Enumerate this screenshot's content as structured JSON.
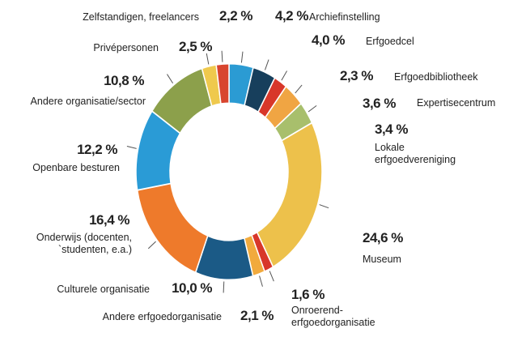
{
  "chart_data": {
    "type": "donut",
    "categories": [
      "Archiefinstelling",
      "Erfgoedcel",
      "Erfgoedbibliotheek",
      "Expertisecentrum",
      "Lokale\nerfgoedvereniging",
      "Museum",
      "Onroerend-\nerfgoedorganisatie",
      "Andere erfgoedorganisatie",
      "Culturele organisatie",
      "Onderwijs (docenten,\n`studenten, e.a.)",
      "Openbare besturen",
      "Andere organisatie/sector",
      "Privépersonen",
      "Zelfstandigen, freelancers"
    ],
    "values": [
      4.2,
      4.0,
      2.3,
      3.6,
      3.4,
      24.6,
      1.6,
      2.1,
      10.0,
      16.4,
      12.2,
      10.8,
      2.5,
      2.2
    ],
    "value_labels": [
      "4,2 %",
      "4,0 %",
      "2,3 %",
      "3,6 %",
      "3,4 %",
      "24,6 %",
      "1,6 %",
      "2,1 %",
      "10,0 %",
      "16,4 %",
      "12,2 %",
      "10,8 %",
      "2,5 %",
      "2,2 %"
    ],
    "colors": [
      "#2b9bd3",
      "#173f5c",
      "#d8372a",
      "#f0a543",
      "#a8bf6c",
      "#edc14b",
      "#d8372a",
      "#f1aa3d",
      "#1b5a86",
      "#ee7a2b",
      "#2a9bd6",
      "#8ca04b",
      "#efc94d",
      "#d8452f"
    ]
  }
}
